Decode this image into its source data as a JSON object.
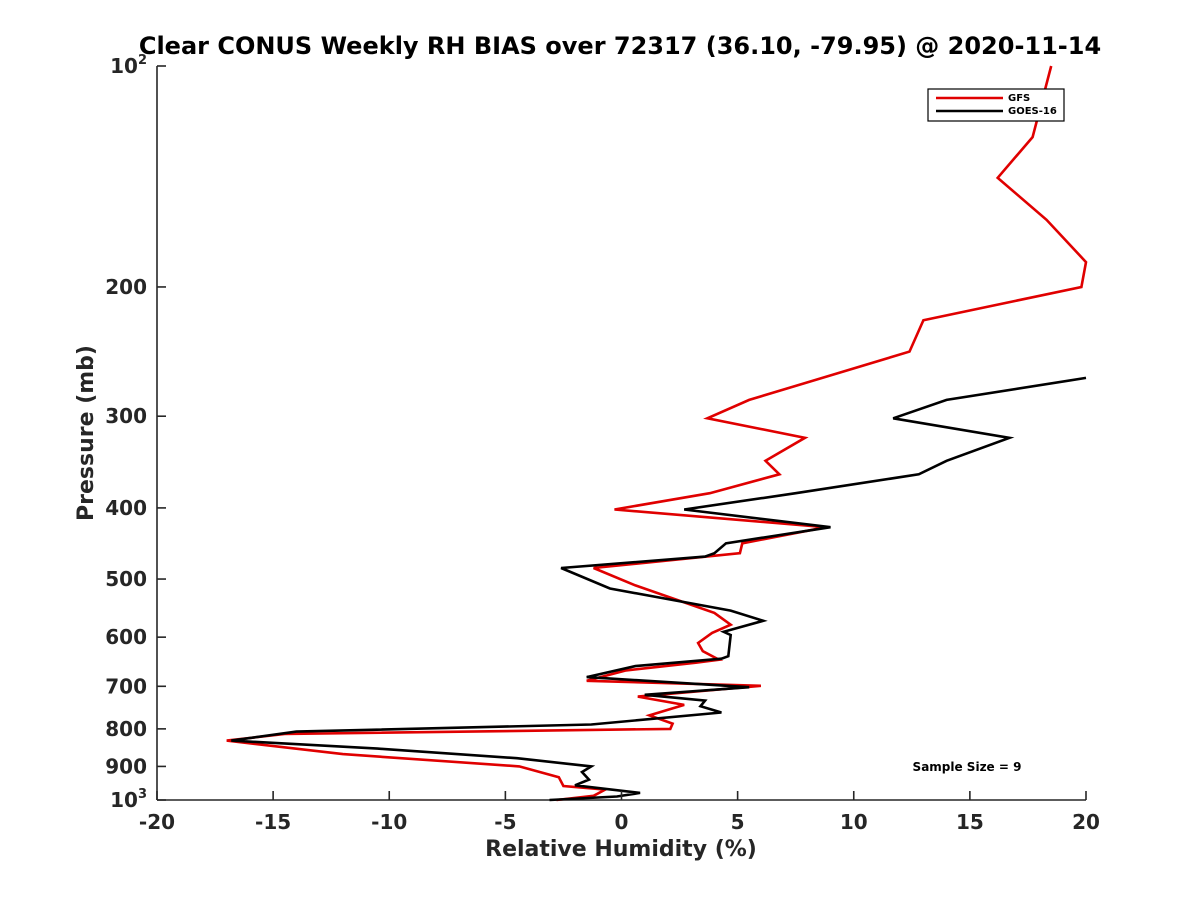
{
  "chart_data": {
    "type": "line",
    "title": "Clear CONUS Weekly RH BIAS over 72317 (36.10, -79.95) @ 2020-11-14",
    "xlabel": "Relative Humidity (%)",
    "ylabel": "Pressure (mb)",
    "xlim": [
      -20,
      20
    ],
    "ylim": [
      100,
      1000
    ],
    "y_scale": "log",
    "y_reversed": true,
    "grid": false,
    "legend_position": "top-right",
    "x_ticks": [
      "-20",
      "-15",
      "-10",
      "-5",
      "0",
      "5",
      "10",
      "15",
      "20"
    ],
    "y_ticks": [
      {
        "value": 100,
        "base": "10",
        "exp": "2"
      },
      {
        "value": 200,
        "label": "200"
      },
      {
        "value": 300,
        "label": "300"
      },
      {
        "value": 400,
        "label": "400"
      },
      {
        "value": 500,
        "label": "500"
      },
      {
        "value": 600,
        "label": "600"
      },
      {
        "value": 700,
        "label": "700"
      },
      {
        "value": 800,
        "label": "800"
      },
      {
        "value": 900,
        "label": "900"
      },
      {
        "value": 1000,
        "base": "10",
        "exp": "3"
      }
    ],
    "series": [
      {
        "name": "GFS",
        "color": "#e00000",
        "points": [
          [
            18.5,
            100
          ],
          [
            17.7,
            125
          ],
          [
            16.2,
            142
          ],
          [
            18.3,
            162
          ],
          [
            20.0,
            185
          ],
          [
            19.8,
            200
          ],
          [
            13.0,
            222
          ],
          [
            12.4,
            245
          ],
          [
            5.5,
            285
          ],
          [
            3.7,
            302
          ],
          [
            7.9,
            321
          ],
          [
            6.2,
            345
          ],
          [
            6.8,
            360
          ],
          [
            3.8,
            382
          ],
          [
            -0.3,
            402
          ],
          [
            8.8,
            425
          ],
          [
            5.2,
            447
          ],
          [
            5.1,
            461
          ],
          [
            -1.2,
            483
          ],
          [
            0.6,
            510
          ],
          [
            4.0,
            556
          ],
          [
            4.7,
            577
          ],
          [
            3.9,
            592
          ],
          [
            3.3,
            611
          ],
          [
            3.5,
            627
          ],
          [
            4.2,
            644
          ],
          [
            3.2,
            650
          ],
          [
            0.2,
            666
          ],
          [
            -1.5,
            688
          ],
          [
            6.0,
            699
          ],
          [
            0.7,
            723
          ],
          [
            2.7,
            742
          ],
          [
            1.2,
            767
          ],
          [
            2.2,
            787
          ],
          [
            2.1,
            800
          ],
          [
            -14.5,
            813
          ],
          [
            -17.0,
            830
          ],
          [
            -12.0,
            866
          ],
          [
            -4.4,
            900
          ],
          [
            -2.7,
            931
          ],
          [
            -2.5,
            957
          ],
          [
            -0.7,
            968
          ],
          [
            -1.2,
            987
          ],
          [
            -2.8,
            1000
          ]
        ]
      },
      {
        "name": "GOES-16",
        "color": "#000000",
        "points": [
          [
            20.0,
            266
          ],
          [
            14.0,
            285
          ],
          [
            11.7,
            302
          ],
          [
            16.7,
            321
          ],
          [
            14.0,
            345
          ],
          [
            12.8,
            360
          ],
          [
            7.5,
            382
          ],
          [
            2.7,
            402
          ],
          [
            9.0,
            425
          ],
          [
            4.5,
            447
          ],
          [
            4.0,
            461
          ],
          [
            3.6,
            466
          ],
          [
            -2.6,
            483
          ],
          [
            -0.5,
            515
          ],
          [
            4.7,
            552
          ],
          [
            6.1,
            570
          ],
          [
            4.4,
            590
          ],
          [
            4.7,
            596
          ],
          [
            4.6,
            637
          ],
          [
            4.3,
            642
          ],
          [
            0.6,
            657
          ],
          [
            -1.5,
            680
          ],
          [
            5.5,
            702
          ],
          [
            1.0,
            719
          ],
          [
            3.6,
            732
          ],
          [
            3.4,
            745
          ],
          [
            4.3,
            760
          ],
          [
            -1.3,
            789
          ],
          [
            -14.0,
            807
          ],
          [
            -16.8,
            830
          ],
          [
            -10.5,
            851
          ],
          [
            -4.5,
            877
          ],
          [
            -1.3,
            900
          ],
          [
            -1.7,
            916
          ],
          [
            -1.4,
            938
          ],
          [
            -2.0,
            955
          ],
          [
            0.8,
            978
          ],
          [
            -0.2,
            989
          ],
          [
            -3.1,
            1000
          ]
        ]
      }
    ],
    "annotations": [
      {
        "text": "Sample Size = 9"
      }
    ]
  }
}
